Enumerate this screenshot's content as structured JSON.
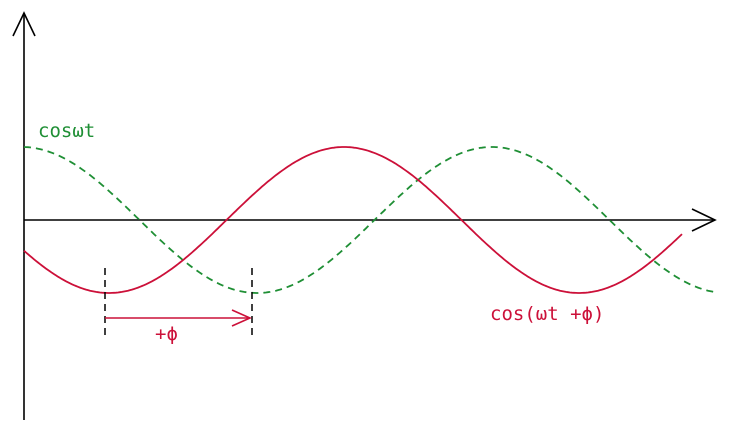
{
  "labels": {
    "reference": "cosωt",
    "shifted": "cos(ωt +ϕ)",
    "shift": "+ϕ"
  }
}
